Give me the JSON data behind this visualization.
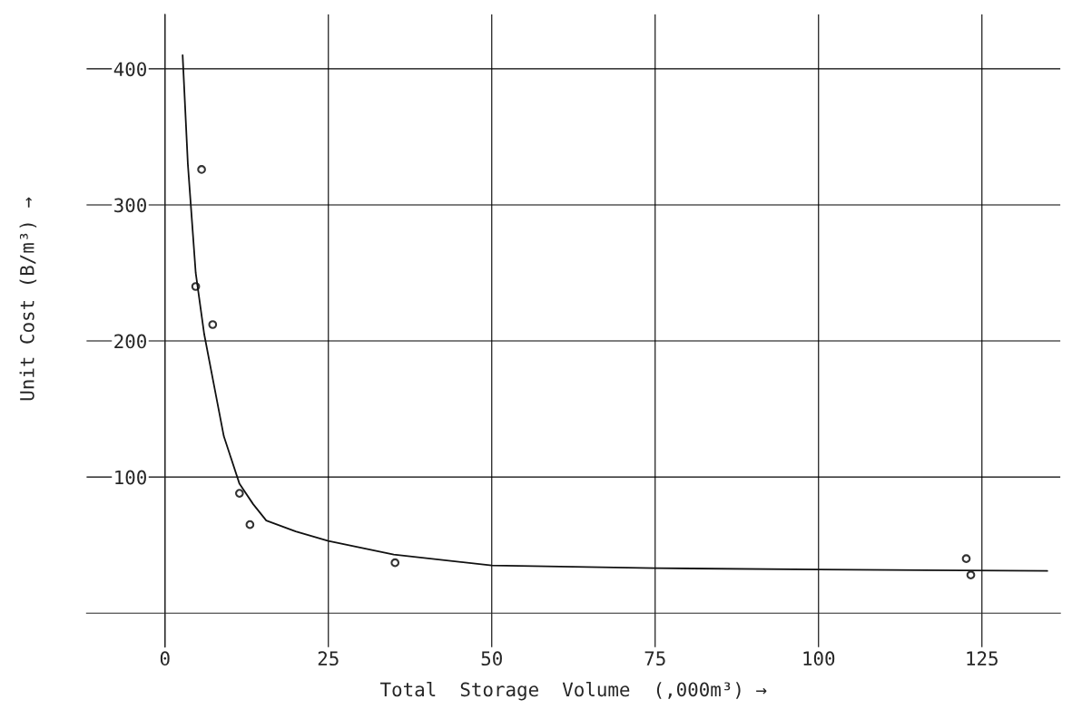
{
  "chart_data": {
    "type": "scatter",
    "xlabel": "Total  Storage  Volume  (,000m³) →",
    "ylabel": "Unit Cost (B/m³) →",
    "xlim": [
      -12,
      137
    ],
    "ylim": [
      -25,
      440
    ],
    "xticks": [
      0,
      25,
      50,
      75,
      100,
      125
    ],
    "yticks": [
      100,
      200,
      300,
      400
    ],
    "grid": true,
    "series": [
      {
        "marker": "circle",
        "color": "#333333",
        "x": [
          5.6,
          4.7,
          7.3,
          11.4,
          13.0,
          35.2,
          122.6,
          123.3
        ],
        "values": [
          326,
          240,
          212,
          88,
          65,
          37,
          40,
          28
        ]
      },
      {
        "type": "line",
        "color": "#111111",
        "x": [
          2.7,
          3.5,
          4.7,
          6.0,
          7.4,
          9.0,
          11.4,
          13.5,
          15.5,
          20,
          25,
          35,
          50,
          75,
          100,
          135
        ],
        "values": [
          410,
          330,
          250,
          205,
          170,
          130,
          95,
          80,
          68,
          60,
          53,
          43,
          35,
          33,
          32,
          31
        ]
      }
    ]
  }
}
